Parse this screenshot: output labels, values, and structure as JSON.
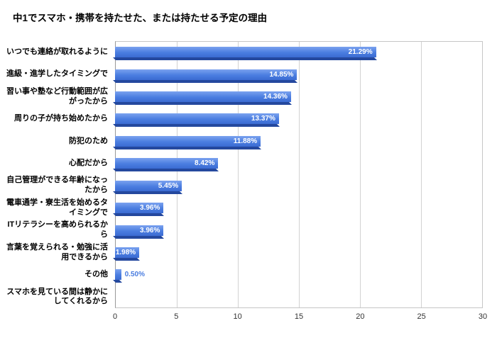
{
  "title": "中1でスマホ・携帯を持たせた、または持たせる予定の理由",
  "chart_data": {
    "type": "bar",
    "orientation": "horizontal",
    "title": "中1でスマホ・携帯を持たせた、または持たせる予定の理由",
    "xlabel": "",
    "ylabel": "",
    "xlim": [
      0,
      30
    ],
    "xticks": [
      "0",
      "5",
      "10",
      "15",
      "20",
      "25",
      "30"
    ],
    "grid": true,
    "legend": false,
    "bar_color": "#4a7de0",
    "bar_color_dark": "#24489e",
    "outside_label_color": "#4a7de0",
    "rows": [
      {
        "category": "いつでも連絡が取れるように",
        "value": 21.29,
        "label": "21.29%",
        "label_inside": true
      },
      {
        "category": "進級・進学したタイミングで",
        "value": 14.85,
        "label": "14.85%",
        "label_inside": true
      },
      {
        "category": "習い事や塾など行動範囲が広がったから",
        "value": 14.36,
        "label": "14.36%",
        "label_inside": true
      },
      {
        "category": "周りの子が持ち始めたから",
        "value": 13.37,
        "label": "13.37%",
        "label_inside": true
      },
      {
        "category": "防犯のため",
        "value": 11.88,
        "label": "11.88%",
        "label_inside": true
      },
      {
        "category": "心配だから",
        "value": 8.42,
        "label": "8.42%",
        "label_inside": true
      },
      {
        "category": "自己管理ができる年齢になったから",
        "value": 5.45,
        "label": "5.45%",
        "label_inside": true
      },
      {
        "category": "電車通学・寮生活を始めるタイミングで",
        "value": 3.96,
        "label": "3.96%",
        "label_inside": true
      },
      {
        "category": "ITリテラシーを高められるから",
        "value": 3.96,
        "label": "3.96%",
        "label_inside": true
      },
      {
        "category": "言葉を覚えられる・勉強に活用できるから",
        "value": 1.98,
        "label": "1.98%",
        "label_inside": true
      },
      {
        "category": "その他",
        "value": 0.5,
        "label": "0.50%",
        "label_inside": false
      },
      {
        "category": "スマホを見ている間は静かにしてくれるから",
        "value": 0,
        "label": "",
        "label_inside": false
      }
    ]
  }
}
